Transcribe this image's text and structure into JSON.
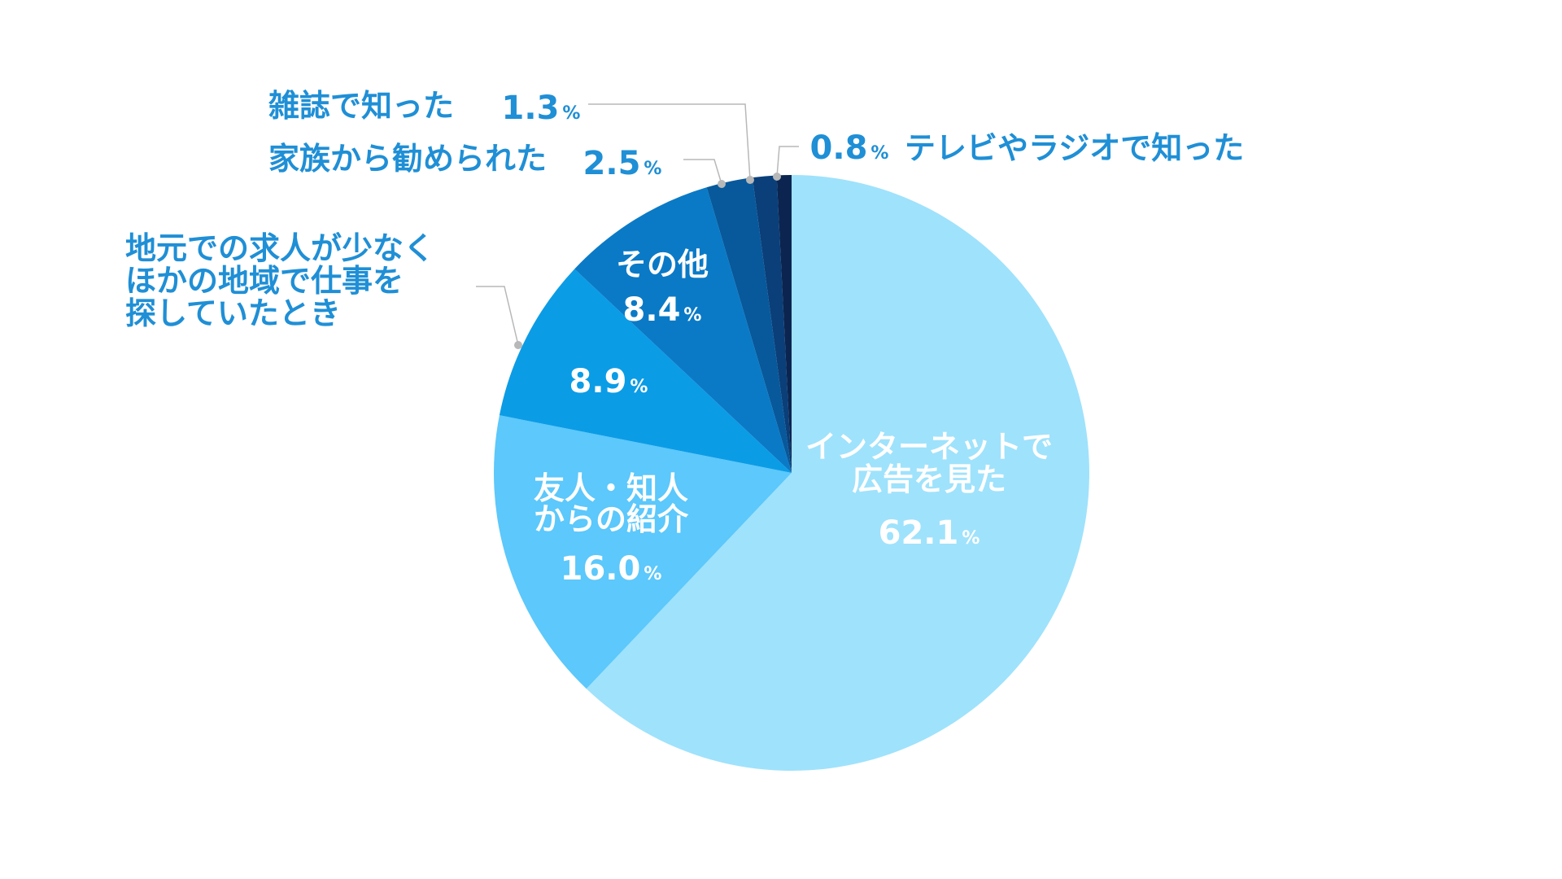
{
  "chart_data": {
    "type": "pie",
    "start": "top",
    "direction": "clockwise",
    "percent_sign": "%",
    "slices": [
      {
        "label": [
          "インターネットで",
          "広告を見た"
        ],
        "value": 62.1,
        "color": "#9fe2fc",
        "label_position": "inside"
      },
      {
        "label": [
          "友人・知人",
          "からの紹介"
        ],
        "value": 16.0,
        "color": "#5cc8fb",
        "label_position": "inside"
      },
      {
        "label": [
          "地元での求人が少なく",
          "ほかの地域で仕事を",
          "探していたとき"
        ],
        "value": 8.9,
        "color": "#0b9ce6",
        "label_position": "split"
      },
      {
        "label": [
          "その他"
        ],
        "value": 8.4,
        "color": "#0a7ac6",
        "label_position": "inside"
      },
      {
        "label": [
          "家族から勧められた"
        ],
        "value": 2.5,
        "color": "#07599b",
        "label_position": "outside"
      },
      {
        "label": [
          "雑誌で知った"
        ],
        "value": 1.3,
        "color": "#0a3f7a",
        "label_position": "outside"
      },
      {
        "label": [
          "テレビやラジオで知った"
        ],
        "value": 0.8,
        "color": "#0b2550",
        "label_position": "outside"
      }
    ]
  }
}
